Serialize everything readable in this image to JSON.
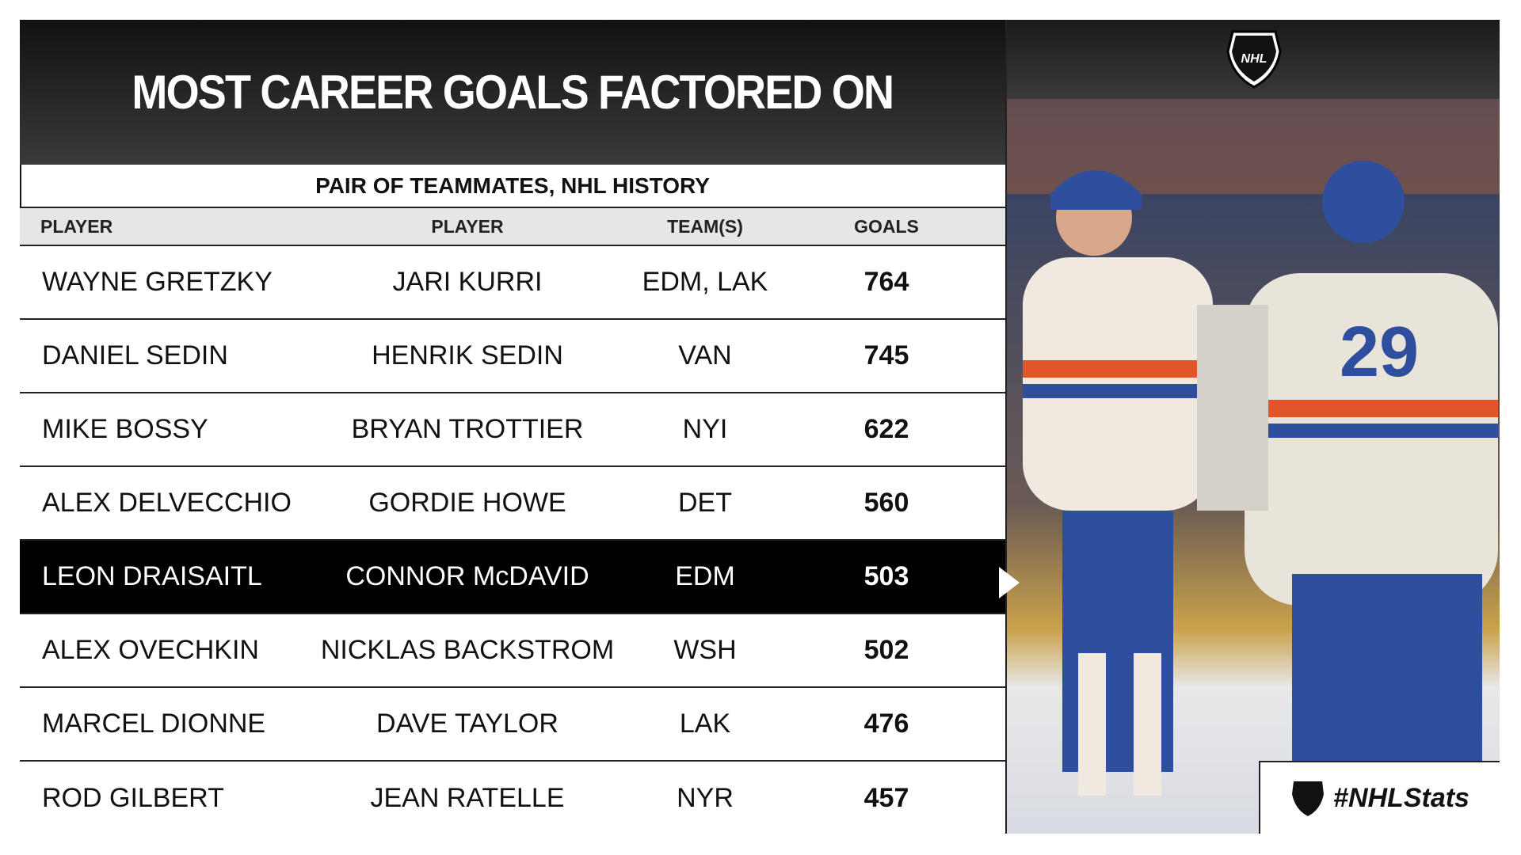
{
  "header": {
    "title": "MOST CAREER GOALS FACTORED ON"
  },
  "table": {
    "subtitle": "PAIR OF TEAMMATES, NHL HISTORY",
    "columns": [
      "PLAYER",
      "PLAYER",
      "TEAM(S)",
      "GOALS"
    ],
    "rows": [
      [
        "WAYNE GRETZKY",
        "JARI KURRI",
        "EDM, LAK",
        764
      ],
      [
        "DANIEL SEDIN",
        "HENRIK SEDIN",
        "VAN",
        745
      ],
      [
        "MIKE BOSSY",
        "BRYAN TROTTIER",
        "NYI",
        622
      ],
      [
        "ALEX DELVECCHIO",
        "GORDIE HOWE",
        "DET",
        560
      ],
      [
        "LEON DRAISAITL",
        "CONNOR McDAVID",
        "EDM",
        503
      ],
      [
        "ALEX OVECHKIN",
        "NICKLAS BACKSTROM",
        "WSH",
        502
      ],
      [
        "MARCEL DIONNE",
        "DAVE TAYLOR",
        "LAK",
        476
      ],
      [
        "ROD GILBERT",
        "JEAN RATELLE",
        "NYR",
        457
      ]
    ]
  },
  "branding": {
    "logo": "NHL",
    "hashtag": "#NHLStats"
  }
}
